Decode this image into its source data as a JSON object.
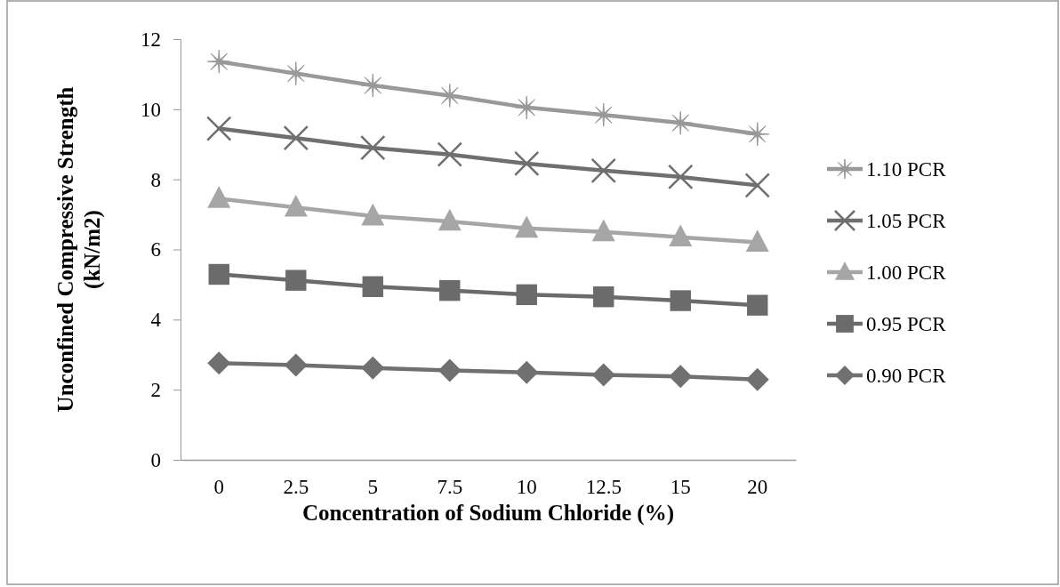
{
  "chart_data": {
    "type": "line",
    "xlabel": "Concentration of Sodium Chloride (%)",
    "ylabel": "Unconfined Compressive Strength (kN/m2)",
    "categories": [
      "0",
      "2.5",
      "5",
      "7.5",
      "10",
      "12.5",
      "15",
      "20"
    ],
    "ylim": [
      0,
      12
    ],
    "yticks": [
      0,
      2,
      4,
      6,
      8,
      10,
      12
    ],
    "legend": "right",
    "series": [
      {
        "name": "1.10 PCR",
        "color": "#999999",
        "marker": "star",
        "values": [
          11.36,
          11.02,
          10.68,
          10.39,
          10.05,
          9.84,
          9.61,
          9.29
        ]
      },
      {
        "name": "1.05 PCR",
        "color": "#6f6f6f",
        "marker": "cross",
        "values": [
          9.45,
          9.18,
          8.9,
          8.71,
          8.45,
          8.25,
          8.07,
          7.83
        ]
      },
      {
        "name": "1.00 PCR",
        "color": "#a6a6a6",
        "marker": "triangle",
        "values": [
          7.45,
          7.2,
          6.95,
          6.8,
          6.6,
          6.5,
          6.35,
          6.2
        ]
      },
      {
        "name": "0.95 PCR",
        "color": "#6b6b6b",
        "marker": "square",
        "values": [
          5.29,
          5.12,
          4.94,
          4.83,
          4.71,
          4.65,
          4.54,
          4.41
        ]
      },
      {
        "name": "0.90 PCR",
        "color": "#707070",
        "marker": "diamond",
        "values": [
          2.76,
          2.7,
          2.62,
          2.55,
          2.49,
          2.42,
          2.38,
          2.29
        ]
      }
    ]
  }
}
